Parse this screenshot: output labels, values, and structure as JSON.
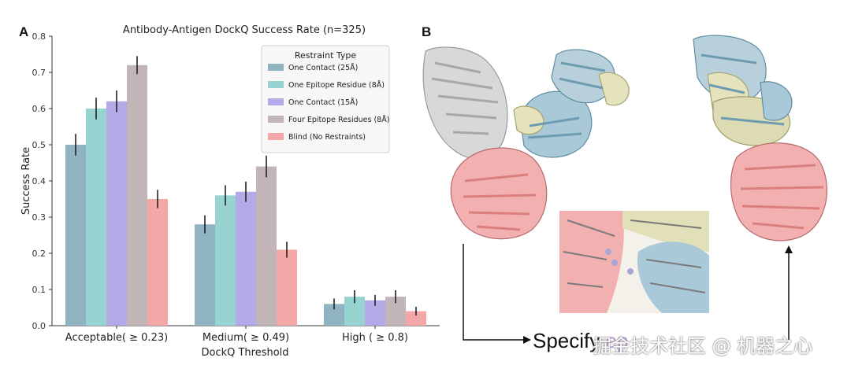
{
  "panel_a_label": "A",
  "panel_b_label": "B",
  "chart_data": {
    "type": "bar",
    "title": "Antibody-Antigen DockQ Success Rate (n=325)",
    "xlabel": "DockQ Threshold",
    "ylabel": "Success Rate",
    "ylim": [
      0,
      0.8
    ],
    "yticks": [
      "0.0",
      "0.1",
      "0.2",
      "0.3",
      "0.4",
      "0.5",
      "0.6",
      "0.7",
      "0.8"
    ],
    "categories": [
      "Acceptable( ≥ 0.23)",
      "Medium( ≥ 0.49)",
      "High ( ≥ 0.8)"
    ],
    "legend_title": "Restraint Type",
    "legend_position": "top-right",
    "grid": false,
    "series": [
      {
        "name": "One Contact (25Å)",
        "color": "#8fb3c1",
        "values": [
          0.5,
          0.28,
          0.06
        ],
        "errors": [
          0.03,
          0.025,
          0.015
        ]
      },
      {
        "name": "One Epitope Residue (8Å)",
        "color": "#97d3d0",
        "values": [
          0.6,
          0.36,
          0.08
        ],
        "errors": [
          0.03,
          0.028,
          0.018
        ]
      },
      {
        "name": "One Contact (15Å)",
        "color": "#b3aae8",
        "values": [
          0.62,
          0.37,
          0.07
        ],
        "errors": [
          0.03,
          0.028,
          0.015
        ]
      },
      {
        "name": "Four Epitope Residues (8Å)",
        "color": "#c2b5b7",
        "values": [
          0.72,
          0.44,
          0.08
        ],
        "errors": [
          0.025,
          0.03,
          0.018
        ]
      },
      {
        "name": "Blind (No Restraints)",
        "color": "#f3a7a7",
        "values": [
          0.35,
          0.21,
          0.04
        ],
        "errors": [
          0.025,
          0.022,
          0.012
        ]
      }
    ]
  },
  "panel_b": {
    "caption_start": "Specify ",
    "caption_accent": "ep",
    "watermark": "掘金技术社区 @ 机器之心",
    "colors": {
      "antigen": "#e98e8e",
      "heavy": "#8fb7cc",
      "light": "#d4d3a4",
      "grey": "#bdbdbd"
    }
  }
}
